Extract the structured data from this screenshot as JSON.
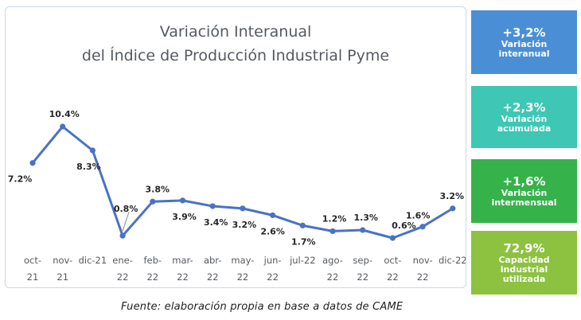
{
  "chart_data": {
    "type": "line",
    "title_lines": [
      "Variación Interanual",
      "del Índice de Producción Industrial Pyme"
    ],
    "categories": [
      [
        "oct-",
        "21"
      ],
      [
        "nov-",
        "21"
      ],
      [
        "dic-21",
        ""
      ],
      [
        "ene-",
        "22"
      ],
      [
        "feb-",
        "22"
      ],
      [
        "mar-",
        "22"
      ],
      [
        "abr-",
        "22"
      ],
      [
        "may-",
        "22"
      ],
      [
        "jun-",
        "22"
      ],
      [
        "jul-22",
        ""
      ],
      [
        "ago-",
        "22"
      ],
      [
        "sep-",
        "22"
      ],
      [
        "oct-",
        "22"
      ],
      [
        "nov-",
        "22"
      ],
      [
        "dic-22",
        ""
      ]
    ],
    "values": [
      7.2,
      10.4,
      8.3,
      0.8,
      3.8,
      3.9,
      3.4,
      3.2,
      2.6,
      1.7,
      1.2,
      1.3,
      0.6,
      1.6,
      3.2
    ],
    "data_labels": [
      "7.2%",
      "10.4%",
      "8.3%",
      "0.8%",
      "3.8%",
      "3.9%",
      "3.4%",
      "3.2%",
      "2.6%",
      "1.7%",
      "1.2%",
      "1.3%",
      "0.6%",
      "1.6%",
      "3.2%"
    ],
    "series_color": "#4a72c4",
    "grid": false,
    "legend": "none"
  },
  "kpis": [
    {
      "value": "+3,2%",
      "label_lines": [
        "Variación",
        "interanual"
      ],
      "color": "#4a8fd6"
    },
    {
      "value": "+2,3%",
      "label_lines": [
        "Variación",
        "acumulada"
      ],
      "color": "#3dc7b4"
    },
    {
      "value": "+1,6%",
      "label_lines": [
        "Variación",
        "intermensual"
      ],
      "color": "#36b24a"
    },
    {
      "value": "72,9%",
      "label_lines": [
        "Capacidad",
        "industrial",
        "utilizada"
      ],
      "color": "#8cc23f"
    }
  ],
  "source_note": "Fuente: elaboración propia en base a datos de CAME"
}
